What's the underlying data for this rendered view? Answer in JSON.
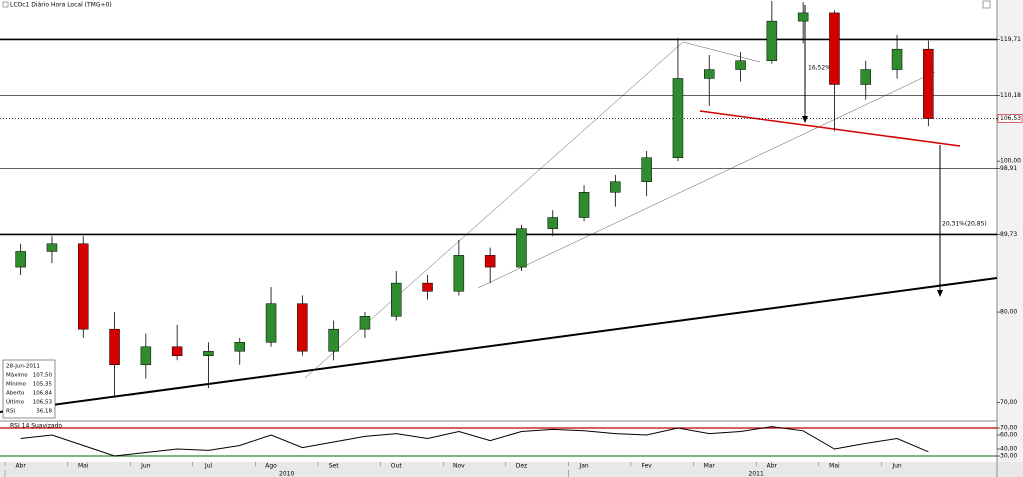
{
  "chart_data": {
    "type": "candlestick",
    "title": "LCOc1 Diário Hora Local (TMG+0)",
    "log_scale": true,
    "up_color": "#2e8b2e",
    "down_color": "#d40000",
    "categories": [
      "Abr",
      null,
      "Mai",
      null,
      "Jun",
      null,
      "Jul",
      null,
      "Ago",
      null,
      "Set",
      null,
      "Out",
      null,
      "Nov",
      null,
      "Dez",
      null,
      "Jan",
      null,
      "Fev",
      null,
      "Mar",
      null,
      "Abr",
      null,
      "Mai",
      null,
      "Jun",
      null
    ],
    "years": [
      "2010",
      "2011"
    ],
    "open": [
      85.5,
      87.5,
      88.5,
      78,
      74,
      76,
      75,
      75.5,
      76.5,
      81,
      75.5,
      78,
      79.5,
      83.5,
      82.5,
      87,
      85.5,
      90.5,
      92,
      95.5,
      97,
      100.5,
      113,
      114.5,
      116,
      123,
      124.5,
      112,
      114.5,
      118
    ],
    "high": [
      88.5,
      89.5,
      89.5,
      80,
      77.5,
      78.5,
      76.5,
      77,
      83,
      82,
      79,
      80,
      85,
      84.5,
      89,
      88,
      91,
      93,
      96.5,
      98,
      101.5,
      120,
      117,
      117.5,
      126.7,
      126.5,
      125,
      116,
      120.5,
      119.5
    ],
    "low": [
      84.5,
      86,
      77,
      70.5,
      72.5,
      74.5,
      71.5,
      74,
      76,
      75,
      74.5,
      77,
      79,
      81.5,
      82,
      83.5,
      85,
      89.5,
      91.5,
      93.5,
      95,
      100,
      108.5,
      112.5,
      115.5,
      119,
      104.5,
      109.5,
      113,
      105.3
    ],
    "close": [
      87.5,
      88.5,
      78,
      74,
      76,
      75,
      75.5,
      76.5,
      81,
      75.5,
      78,
      79.5,
      83.5,
      82.5,
      87,
      85.5,
      90.5,
      92,
      95.5,
      97,
      100.5,
      113,
      114.5,
      116,
      123,
      124.5,
      112,
      114.5,
      118,
      106.5
    ],
    "ylim": [
      68.2,
      126.9
    ],
    "yticks": [
      {
        "value": 119.71,
        "label": "119,71"
      },
      {
        "value": 110.18,
        "label": "110,18"
      },
      {
        "value": 106.53,
        "label": "106,53"
      },
      {
        "value": 100,
        "label": "100,00"
      },
      {
        "value": 98.91,
        "label": "98,91"
      },
      {
        "value": 89.73,
        "label": "89,73"
      },
      {
        "value": 80,
        "label": "80,00"
      },
      {
        "value": 70,
        "label": "70,00"
      }
    ],
    "hlines": [
      {
        "value": 119.71,
        "style": "heavy"
      },
      {
        "value": 110.18,
        "style": "light"
      },
      {
        "value": 106.53,
        "style": "dotted"
      },
      {
        "value": 98.91,
        "style": "light"
      },
      {
        "value": 89.73,
        "style": "heavy"
      }
    ],
    "annotations": [
      "16,52%",
      "20,31%(20,85)"
    ],
    "info": {
      "date": "28-Jun-2011",
      "rows": [
        [
          "Máximo",
          "107,50"
        ],
        [
          "Mínimo",
          "105,35"
        ],
        [
          "Aberto",
          "106,84"
        ],
        [
          "Último",
          "106,53"
        ],
        [
          "RSI",
          "36,18"
        ]
      ]
    },
    "rsi": {
      "title": "RSI 14 Suavizado",
      "values": [
        55,
        60,
        45,
        30,
        35,
        40,
        38,
        45,
        60,
        42,
        50,
        58,
        62,
        55,
        65,
        52,
        65,
        68,
        66,
        62,
        60,
        70,
        62,
        65,
        72,
        66,
        40,
        48,
        55,
        36
      ],
      "ylim": [
        20,
        80
      ],
      "yticks": [
        {
          "value": 70,
          "label": "70,00"
        },
        {
          "value": 60,
          "label": "60,00"
        },
        {
          "value": 40,
          "label": "40,00"
        },
        {
          "value": 30,
          "label": "30,00"
        }
      ],
      "overbought_color": "#c00000",
      "oversold_color": "#2e8b2e"
    }
  }
}
